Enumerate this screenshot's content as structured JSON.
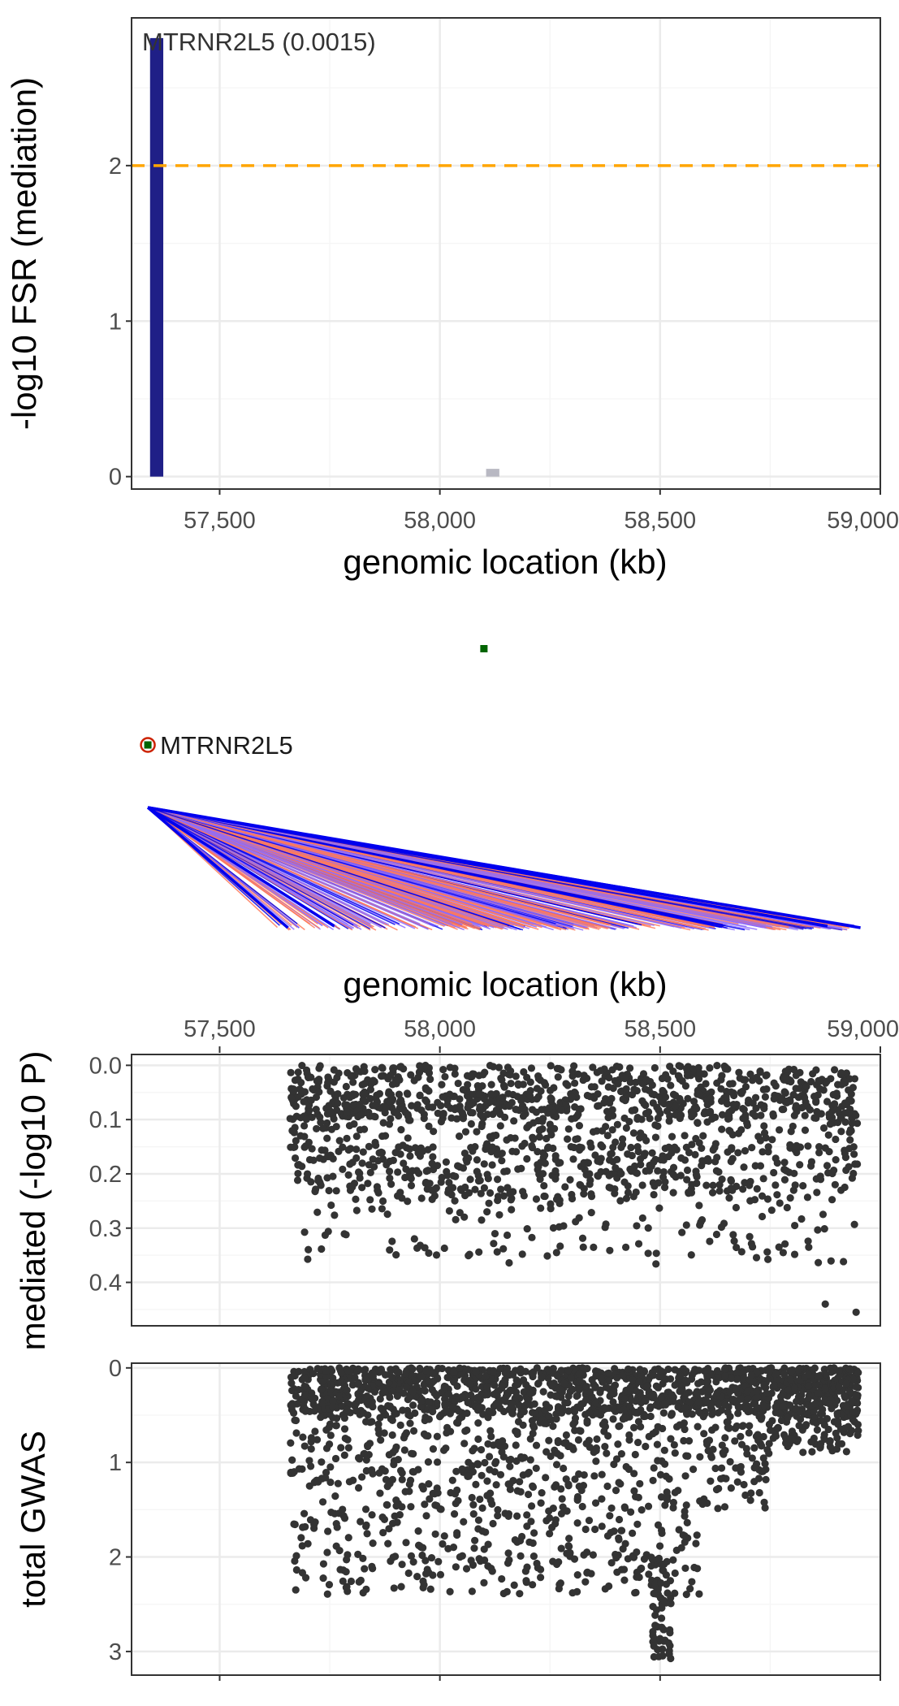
{
  "colors": {
    "panel_border": "#333333",
    "grid_major": "#ebebeb",
    "grid_minor": "#f5f5f5",
    "significant_bar": "#1f1f87",
    "nonsignificant_bar": "#b8b8c2",
    "threshold_line": "#ffa500",
    "point": "#333333",
    "gene_square": "#006400",
    "gene_circle": "#cc2200",
    "link_blue": "#0000ee",
    "link_purple": "#8c6cff",
    "link_orange": "#ff7a5c"
  },
  "chart_data": [
    {
      "id": "fsr_panel",
      "type": "bar",
      "xlabel": "genomic location (kb)",
      "ylabel": "-log10 FSR (mediation)",
      "xlim": [
        57300,
        59000
      ],
      "ylim": [
        -0.08,
        2.95
      ],
      "xticks": [
        57500,
        58000,
        58500,
        59000
      ],
      "xtick_labels": [
        "57,500",
        "58,000",
        "58,500",
        "59,000"
      ],
      "yticks": [
        0,
        1,
        2
      ],
      "ytick_labels": [
        "0",
        "1",
        "2"
      ],
      "threshold": 2,
      "bars": [
        {
          "x": 57357,
          "width": 30,
          "value": 2.82,
          "significant": true
        },
        {
          "x": 58120,
          "width": 30,
          "value": 0.05,
          "significant": false
        }
      ],
      "annotation": "MTRNR2L5 (0.0015)"
    },
    {
      "id": "gene_map_panel",
      "type": "diagram",
      "xlabel": "genomic location (kb)",
      "xlim": [
        57300,
        59000
      ],
      "xticks": [
        57500,
        58000,
        58500,
        59000
      ],
      "xtick_labels": [
        "57,500",
        "58,000",
        "58,500",
        "59,000"
      ],
      "gene_label": "MTRNR2L5",
      "gene_position_kb": 57337,
      "link_end_range_kb": [
        57630,
        58950
      ],
      "isolated_marker_position_kb": 58100
    },
    {
      "id": "mediated_panel",
      "type": "scatter",
      "ylabel": "mediated (-log10 P)",
      "xlim": [
        57300,
        59000
      ],
      "ylim": [
        -0.02,
        0.48
      ],
      "y_reversed": true,
      "yticks": [
        0,
        0.1,
        0.2,
        0.3,
        0.4
      ],
      "ytick_labels": [
        "0.0",
        "0.1",
        "0.2",
        "0.3",
        "0.4"
      ],
      "x_range_kb": [
        57660,
        58950
      ],
      "y_range": [
        0,
        0.46
      ],
      "approx_point_count": 1500,
      "outliers": [
        {
          "x": 58875,
          "y": 0.44
        },
        {
          "x": 58945,
          "y": 0.455
        }
      ]
    },
    {
      "id": "gwas_panel",
      "type": "scatter",
      "ylabel": "total GWAS",
      "xlim": [
        57300,
        59000
      ],
      "ylim": [
        -0.05,
        3.25
      ],
      "y_reversed": true,
      "yticks": [
        0,
        1,
        2,
        3
      ],
      "ytick_labels": [
        "0",
        "1",
        "2",
        "3"
      ],
      "x_range_kb": [
        57660,
        58950
      ],
      "y_range": [
        0,
        3.1
      ],
      "approx_point_count": 2200
    }
  ]
}
